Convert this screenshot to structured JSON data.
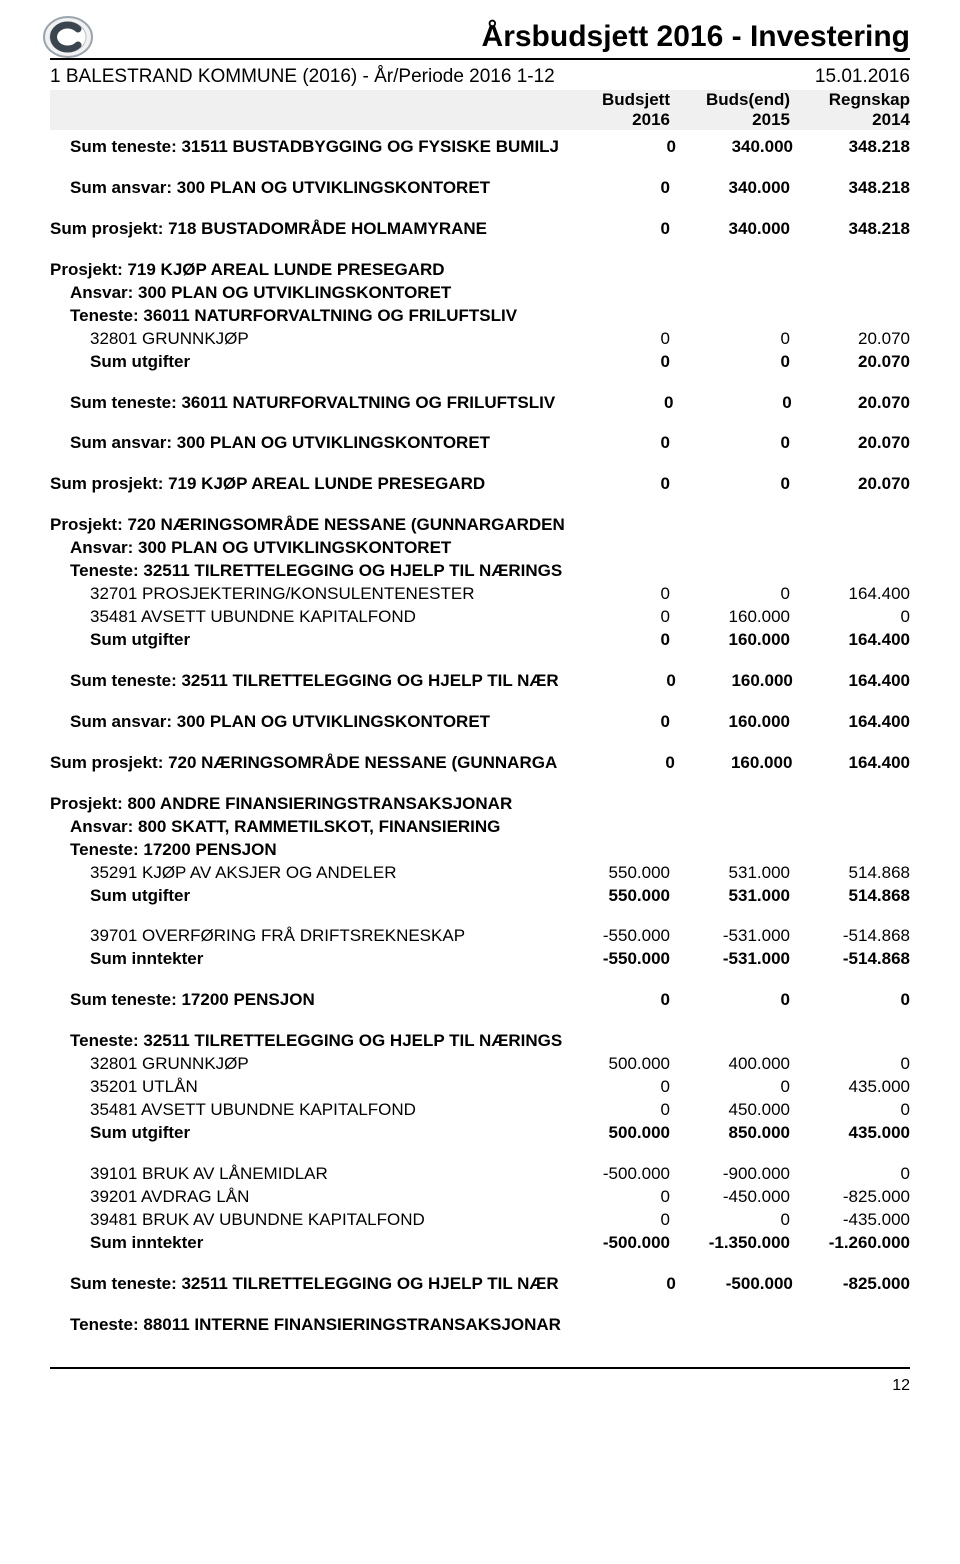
{
  "header": {
    "title": "Årsbudsjett 2016 - Investering",
    "subtitle_left": "1 BALESTRAND KOMMUNE (2016) - År/Periode 2016 1-12",
    "subtitle_right": "15.01.2016",
    "col1_a": "Budsjett",
    "col1_b": "2016",
    "col2_a": "Buds(end)",
    "col2_b": "2015",
    "col3_a": "Regnskap",
    "col3_b": "2014"
  },
  "rows": [
    {
      "label": "Sum teneste: 31511 BUSTADBYGGING OG FYSISKE BUMILJ",
      "bold": true,
      "indent": 1,
      "v1": "0",
      "v2": "340.000",
      "v3": "348.218"
    },
    {
      "gap": true
    },
    {
      "label": "Sum ansvar: 300 PLAN OG UTVIKLINGSKONTORET",
      "bold": true,
      "indent": 1,
      "v1": "0",
      "v2": "340.000",
      "v3": "348.218"
    },
    {
      "gap": true
    },
    {
      "label": "Sum prosjekt: 718 BUSTADOMRÅDE  HOLMAMYRANE",
      "bold": true,
      "indent": 0,
      "v1": "0",
      "v2": "340.000",
      "v3": "348.218"
    },
    {
      "gap": true
    },
    {
      "label": "Prosjekt: 719 KJØP AREAL LUNDE PRESEGARD",
      "bold": true,
      "indent": 0
    },
    {
      "label": "Ansvar: 300 PLAN OG UTVIKLINGSKONTORET",
      "bold": true,
      "indent": 1
    },
    {
      "label": "Teneste: 36011 NATURFORVALTNING OG FRILUFTSLIV",
      "bold": true,
      "indent": 1
    },
    {
      "label": "32801 GRUNNKJØP",
      "indent": 2,
      "v1": "0",
      "v2": "0",
      "v3": "20.070"
    },
    {
      "label": "Sum utgifter",
      "bold": true,
      "indent": 2,
      "v1": "0",
      "v2": "0",
      "v3": "20.070"
    },
    {
      "gap": true
    },
    {
      "label": "Sum teneste: 36011 NATURFORVALTNING OG FRILUFTSLIV",
      "bold": true,
      "indent": 1,
      "v1": "0",
      "v2": "0",
      "v3": "20.070"
    },
    {
      "gap": true
    },
    {
      "label": "Sum ansvar: 300 PLAN OG UTVIKLINGSKONTORET",
      "bold": true,
      "indent": 1,
      "v1": "0",
      "v2": "0",
      "v3": "20.070"
    },
    {
      "gap": true
    },
    {
      "label": "Sum prosjekt: 719 KJØP AREAL LUNDE PRESEGARD",
      "bold": true,
      "indent": 0,
      "v1": "0",
      "v2": "0",
      "v3": "20.070"
    },
    {
      "gap": true
    },
    {
      "label": "Prosjekt: 720 NÆRINGSOMRÅDE NESSANE (GUNNARGARDEN",
      "bold": true,
      "indent": 0
    },
    {
      "label": "Ansvar: 300 PLAN OG UTVIKLINGSKONTORET",
      "bold": true,
      "indent": 1
    },
    {
      "label": "Teneste: 32511 TILRETTELEGGING OG HJELP TIL NÆRINGS",
      "bold": true,
      "indent": 1
    },
    {
      "label": "32701 PROSJEKTERING/KONSULENTENESTER",
      "indent": 2,
      "v1": "0",
      "v2": "0",
      "v3": "164.400"
    },
    {
      "label": "35481 AVSETT UBUNDNE KAPITALFOND",
      "indent": 2,
      "v1": "0",
      "v2": "160.000",
      "v3": "0"
    },
    {
      "label": "Sum utgifter",
      "bold": true,
      "indent": 2,
      "v1": "0",
      "v2": "160.000",
      "v3": "164.400"
    },
    {
      "gap": true
    },
    {
      "label": "Sum teneste: 32511 TILRETTELEGGING OG HJELP TIL NÆR",
      "bold": true,
      "indent": 1,
      "v1": "0",
      "v2": "160.000",
      "v3": "164.400"
    },
    {
      "gap": true
    },
    {
      "label": "Sum ansvar: 300 PLAN OG UTVIKLINGSKONTORET",
      "bold": true,
      "indent": 1,
      "v1": "0",
      "v2": "160.000",
      "v3": "164.400"
    },
    {
      "gap": true
    },
    {
      "label": "Sum prosjekt: 720 NÆRINGSOMRÅDE NESSANE (GUNNARGA",
      "bold": true,
      "indent": 0,
      "v1": "0",
      "v2": "160.000",
      "v3": "164.400"
    },
    {
      "gap": true
    },
    {
      "label": "Prosjekt: 800 ANDRE FINANSIERINGSTRANSAKSJONAR",
      "bold": true,
      "indent": 0
    },
    {
      "label": "Ansvar: 800 SKATT, RAMMETILSKOT, FINANSIERING",
      "bold": true,
      "indent": 1
    },
    {
      "label": "Teneste: 17200 PENSJON",
      "bold": true,
      "indent": 1
    },
    {
      "label": "35291 KJØP AV AKSJER OG ANDELER",
      "indent": 2,
      "v1": "550.000",
      "v2": "531.000",
      "v3": "514.868"
    },
    {
      "label": "Sum utgifter",
      "bold": true,
      "indent": 2,
      "v1": "550.000",
      "v2": "531.000",
      "v3": "514.868"
    },
    {
      "gap": true
    },
    {
      "label": "39701 OVERFØRING FRÅ DRIFTSREKNESKAP",
      "indent": 2,
      "v1": "-550.000",
      "v2": "-531.000",
      "v3": "-514.868"
    },
    {
      "label": "Sum inntekter",
      "bold": true,
      "indent": 2,
      "v1": "-550.000",
      "v2": "-531.000",
      "v3": "-514.868"
    },
    {
      "gap": true
    },
    {
      "label": "Sum teneste: 17200 PENSJON",
      "bold": true,
      "indent": 1,
      "v1": "0",
      "v2": "0",
      "v3": "0"
    },
    {
      "gap": true
    },
    {
      "label": "Teneste: 32511 TILRETTELEGGING OG HJELP TIL NÆRINGS",
      "bold": true,
      "indent": 1
    },
    {
      "label": "32801 GRUNNKJØP",
      "indent": 2,
      "v1": "500.000",
      "v2": "400.000",
      "v3": "0"
    },
    {
      "label": "35201 UTLÅN",
      "indent": 2,
      "v1": "0",
      "v2": "0",
      "v3": "435.000"
    },
    {
      "label": "35481 AVSETT UBUNDNE KAPITALFOND",
      "indent": 2,
      "v1": "0",
      "v2": "450.000",
      "v3": "0"
    },
    {
      "label": "Sum utgifter",
      "bold": true,
      "indent": 2,
      "v1": "500.000",
      "v2": "850.000",
      "v3": "435.000"
    },
    {
      "gap": true
    },
    {
      "label": "39101 BRUK AV LÅNEMIDLAR",
      "indent": 2,
      "v1": "-500.000",
      "v2": "-900.000",
      "v3": "0"
    },
    {
      "label": "39201 AVDRAG LÅN",
      "indent": 2,
      "v1": "0",
      "v2": "-450.000",
      "v3": "-825.000"
    },
    {
      "label": "39481 BRUK AV UBUNDNE KAPITALFOND",
      "indent": 2,
      "v1": "0",
      "v2": "0",
      "v3": "-435.000"
    },
    {
      "label": "Sum inntekter",
      "bold": true,
      "indent": 2,
      "v1": "-500.000",
      "v2": "-1.350.000",
      "v3": "-1.260.000"
    },
    {
      "gap": true
    },
    {
      "label": "Sum teneste: 32511 TILRETTELEGGING OG HJELP TIL NÆR",
      "bold": true,
      "indent": 1,
      "v1": "0",
      "v2": "-500.000",
      "v3": "-825.000"
    },
    {
      "gap": true
    },
    {
      "label": "Teneste: 88011 INTERNE FINANSIERINGSTRANSAKSJONAR",
      "bold": true,
      "indent": 1
    }
  ],
  "footer": {
    "pagenum": "12"
  },
  "logo": {
    "bg": "#ffffff",
    "ring": "#6b7a86",
    "letter": "#3a4550"
  }
}
